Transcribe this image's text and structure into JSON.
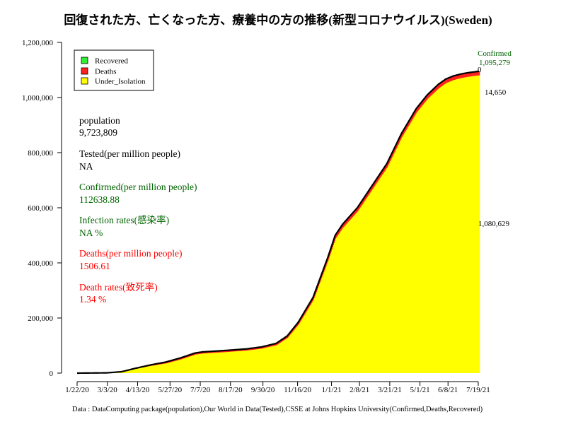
{
  "colors": {
    "recovered": "#33ee33",
    "deaths": "#ff2020",
    "under_isolation": "#ffff00",
    "confirmed_line": "#000000",
    "green_text": "#006400",
    "red_text": "#ff0000"
  },
  "info": {
    "population_label": "population",
    "population_value": "9,723,809",
    "tested_label": "Tested(per million people)",
    "tested_value": "NA",
    "confirmed_label": "Confirmed(per million people)",
    "confirmed_value": "112638.88",
    "infection_label": "Infection rates(感染率)",
    "infection_value": "NA %",
    "deaths_label": "Deaths(per million people)",
    "deaths_value": "1506.61",
    "death_rate_label": "Death rates(致死率)",
    "death_rate_value": "1.34 %"
  },
  "annotations": {
    "confirmed_label": "Confirmed",
    "confirmed_value": "1,095,279",
    "deaths_value": "14,650",
    "recovered_value": "0",
    "under_isolation_value": "1,080,629"
  },
  "chart_data": {
    "type": "area",
    "title": "回復された方、亡くなった方、療養中の方の推移(新型コロナウイルス)(Sweden)",
    "caption": "Data : DataComputing package(population),Our World in Data(Tested),CSSE at Johns Hopkins University(Confirmed,Deaths,Recovered)",
    "xlabel": "",
    "ylabel": "",
    "ylim": [
      0,
      1200000
    ],
    "y_ticks": [
      0,
      200000,
      400000,
      600000,
      800000,
      1000000,
      1200000
    ],
    "y_tick_labels": [
      "0",
      "200,000",
      "400,000",
      "600,000",
      "800,000",
      "1,000,000",
      "1,200,000"
    ],
    "x_tick_labels": [
      "1/22/20",
      "3/3/20",
      "4/13/20",
      "5/27/20",
      "7/7/20",
      "8/17/20",
      "9/30/20",
      "11/16/20",
      "1/1/21",
      "2/8/21",
      "3/21/21",
      "5/1/21",
      "6/8/21",
      "7/19/21"
    ],
    "x_tick_days": [
      0,
      41,
      82,
      126,
      167,
      208,
      252,
      299,
      345,
      383,
      424,
      465,
      503,
      544
    ],
    "legend": [
      "Recovered",
      "Deaths",
      "Under_Isolation"
    ],
    "legend_position": "top-left",
    "days": [
      0,
      40,
      60,
      80,
      100,
      120,
      140,
      160,
      170,
      200,
      230,
      250,
      270,
      285,
      300,
      320,
      340,
      350,
      360,
      380,
      400,
      420,
      440,
      460,
      475,
      490,
      500,
      510,
      520,
      530,
      545
    ],
    "confirmed": [
      1,
      1000,
      5000,
      18000,
      30000,
      40000,
      55000,
      73000,
      77000,
      82000,
      88000,
      95000,
      108000,
      135000,
      185000,
      275000,
      420000,
      500000,
      540000,
      600000,
      680000,
      760000,
      870000,
      960000,
      1010000,
      1048000,
      1067000,
      1078000,
      1085000,
      1090000,
      1095279
    ],
    "deaths": [
      0,
      10,
      400,
      1500,
      3500,
      4800,
      5500,
      5800,
      5850,
      5900,
      6000,
      6200,
      6600,
      7000,
      8000,
      9500,
      11000,
      12000,
      12600,
      13000,
      13300,
      13500,
      13900,
      14200,
      14400,
      14500,
      14550,
      14580,
      14610,
      14630,
      14650
    ],
    "recovered_total": 0
  }
}
